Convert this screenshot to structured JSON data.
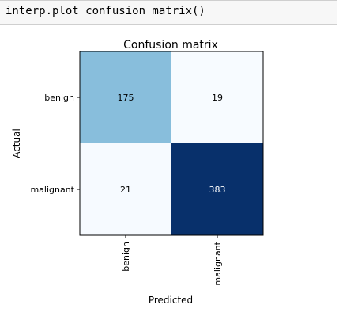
{
  "code_cell": {
    "code": "interp.plot_confusion_matrix()"
  },
  "chart_data": {
    "type": "heatmap",
    "title": "Confusion matrix",
    "xlabel": "Predicted",
    "ylabel": "Actual",
    "x_categories": [
      "benign",
      "malignant"
    ],
    "y_categories": [
      "benign",
      "malignant"
    ],
    "matrix": [
      [
        175,
        19
      ],
      [
        21,
        383
      ]
    ],
    "colormap": "Blues",
    "colors": {
      "low": "#f7fbff",
      "mid": "#8dbfdd",
      "high": "#08306b",
      "text_dark": "#000000",
      "text_light": "#ffffff"
    }
  }
}
